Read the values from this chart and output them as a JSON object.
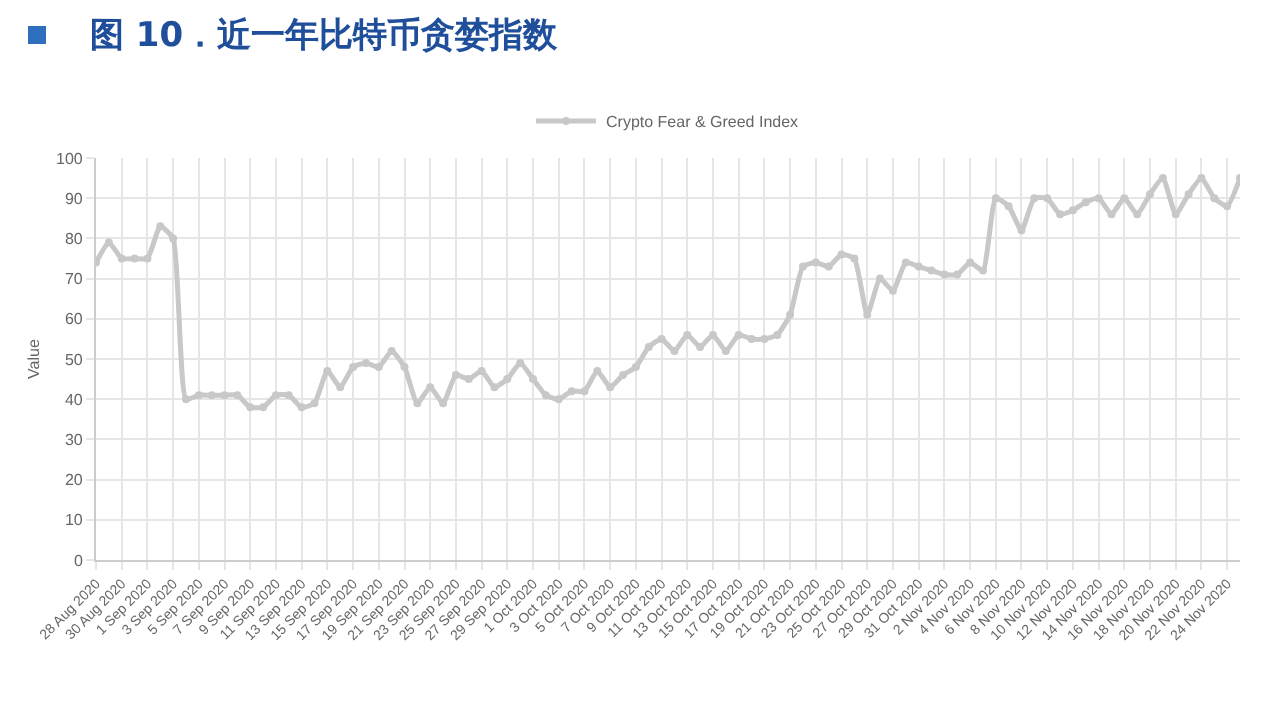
{
  "chart_data": {
    "type": "line",
    "title": "图 10．近一年比特币贪婪指数",
    "ylabel": "Value",
    "x": [
      "2020-08-28",
      "2020-08-29",
      "2020-08-30",
      "2020-08-31",
      "2020-09-01",
      "2020-09-02",
      "2020-09-03",
      "2020-09-04",
      "2020-09-05",
      "2020-09-06",
      "2020-09-07",
      "2020-09-08",
      "2020-09-09",
      "2020-09-10",
      "2020-09-11",
      "2020-09-12",
      "2020-09-13",
      "2020-09-14",
      "2020-09-15",
      "2020-09-16",
      "2020-09-17",
      "2020-09-18",
      "2020-09-19",
      "2020-09-20",
      "2020-09-21",
      "2020-09-22",
      "2020-09-23",
      "2020-09-24",
      "2020-09-25",
      "2020-09-26",
      "2020-09-27",
      "2020-09-28",
      "2020-09-29",
      "2020-09-30",
      "2020-10-01",
      "2020-10-02",
      "2020-10-03",
      "2020-10-04",
      "2020-10-05",
      "2020-10-06",
      "2020-10-07",
      "2020-10-08",
      "2020-10-09",
      "2020-10-10",
      "2020-10-11",
      "2020-10-12",
      "2020-10-13",
      "2020-10-14",
      "2020-10-15",
      "2020-10-16",
      "2020-10-17",
      "2020-10-18",
      "2020-10-19",
      "2020-10-20",
      "2020-10-21",
      "2020-10-22",
      "2020-10-23",
      "2020-10-24",
      "2020-10-25",
      "2020-10-26",
      "2020-10-27",
      "2020-10-28",
      "2020-10-29",
      "2020-10-30",
      "2020-10-31",
      "2020-11-01",
      "2020-11-02",
      "2020-11-03",
      "2020-11-04",
      "2020-11-05",
      "2020-11-06",
      "2020-11-07",
      "2020-11-08",
      "2020-11-09",
      "2020-11-10",
      "2020-11-11",
      "2020-11-12",
      "2020-11-13",
      "2020-11-14",
      "2020-11-15",
      "2020-11-16",
      "2020-11-17",
      "2020-11-18",
      "2020-11-19",
      "2020-11-20",
      "2020-11-21",
      "2020-11-22",
      "2020-11-23",
      "2020-11-24",
      "2020-11-25"
    ],
    "series": [
      {
        "name": "Crypto Fear & Greed Index",
        "color": "#c8c8c8",
        "values": [
          74,
          79,
          75,
          75,
          75,
          83,
          80,
          40,
          41,
          41,
          41,
          41,
          38,
          38,
          41,
          41,
          38,
          39,
          47,
          43,
          48,
          49,
          48,
          52,
          48,
          39,
          43,
          39,
          46,
          45,
          47,
          43,
          45,
          49,
          45,
          41,
          40,
          42,
          42,
          47,
          43,
          46,
          48,
          53,
          55,
          52,
          56,
          53,
          56,
          52,
          56,
          55,
          55,
          56,
          61,
          73,
          74,
          73,
          76,
          75,
          61,
          70,
          67,
          74,
          73,
          72,
          71,
          71,
          74,
          72,
          90,
          88,
          82,
          90,
          90,
          86,
          87,
          89,
          90,
          86,
          90,
          86,
          91,
          95,
          86,
          91,
          95,
          90,
          88,
          95
        ]
      }
    ],
    "xlim": [
      "2020-08-28",
      "2020-11-25"
    ],
    "xticks": [
      {
        "value": "2020-08-28",
        "label": "28 Aug 2020"
      },
      {
        "value": "2020-08-30",
        "label": "30 Aug 2020"
      },
      {
        "value": "2020-09-01",
        "label": "1 Sep 2020"
      },
      {
        "value": "2020-09-03",
        "label": "3 Sep 2020"
      },
      {
        "value": "2020-09-05",
        "label": "5 Sep 2020"
      },
      {
        "value": "2020-09-07",
        "label": "7 Sep 2020"
      },
      {
        "value": "2020-09-09",
        "label": "9 Sep 2020"
      },
      {
        "value": "2020-09-11",
        "label": "11 Sep 2020"
      },
      {
        "value": "2020-09-13",
        "label": "13 Sep 2020"
      },
      {
        "value": "2020-09-15",
        "label": "15 Sep 2020"
      },
      {
        "value": "2020-09-17",
        "label": "17 Sep 2020"
      },
      {
        "value": "2020-09-19",
        "label": "19 Sep 2020"
      },
      {
        "value": "2020-09-21",
        "label": "21 Sep 2020"
      },
      {
        "value": "2020-09-23",
        "label": "23 Sep 2020"
      },
      {
        "value": "2020-09-25",
        "label": "25 Sep 2020"
      },
      {
        "value": "2020-09-27",
        "label": "27 Sep 2020"
      },
      {
        "value": "2020-09-29",
        "label": "29 Sep 2020"
      },
      {
        "value": "2020-10-01",
        "label": "1 Oct 2020"
      },
      {
        "value": "2020-10-03",
        "label": "3 Oct 2020"
      },
      {
        "value": "2020-10-05",
        "label": "5 Oct 2020"
      },
      {
        "value": "2020-10-07",
        "label": "7 Oct 2020"
      },
      {
        "value": "2020-10-09",
        "label": "9 Oct 2020"
      },
      {
        "value": "2020-10-11",
        "label": "11 Oct 2020"
      },
      {
        "value": "2020-10-13",
        "label": "13 Oct 2020"
      },
      {
        "value": "2020-10-15",
        "label": "15 Oct 2020"
      },
      {
        "value": "2020-10-17",
        "label": "17 Oct 2020"
      },
      {
        "value": "2020-10-19",
        "label": "19 Oct 2020"
      },
      {
        "value": "2020-10-21",
        "label": "21 Oct 2020"
      },
      {
        "value": "2020-10-23",
        "label": "23 Oct 2020"
      },
      {
        "value": "2020-10-25",
        "label": "25 Oct 2020"
      },
      {
        "value": "2020-10-27",
        "label": "27 Oct 2020"
      },
      {
        "value": "2020-10-29",
        "label": "29 Oct 2020"
      },
      {
        "value": "2020-10-31",
        "label": "31 Oct 2020"
      },
      {
        "value": "2020-11-02",
        "label": "2 Nov 2020"
      },
      {
        "value": "2020-11-04",
        "label": "4 Nov 2020"
      },
      {
        "value": "2020-11-06",
        "label": "6 Nov 2020"
      },
      {
        "value": "2020-11-08",
        "label": "8 Nov 2020"
      },
      {
        "value": "2020-11-10",
        "label": "10 Nov 2020"
      },
      {
        "value": "2020-11-12",
        "label": "12 Nov 2020"
      },
      {
        "value": "2020-11-14",
        "label": "14 Nov 2020"
      },
      {
        "value": "2020-11-16",
        "label": "16 Nov 2020"
      },
      {
        "value": "2020-11-18",
        "label": "18 Nov 2020"
      },
      {
        "value": "2020-11-20",
        "label": "20 Nov 2020"
      },
      {
        "value": "2020-11-22",
        "label": "22 Nov 2020"
      },
      {
        "value": "2020-11-24",
        "label": "24 Nov 2020"
      }
    ],
    "ylim": [
      0,
      100
    ],
    "yticks": [
      0,
      10,
      20,
      30,
      40,
      50,
      60,
      70,
      80,
      90,
      100
    ],
    "grid": true,
    "legend": "top",
    "marker": "circle",
    "line_style": "solid"
  }
}
